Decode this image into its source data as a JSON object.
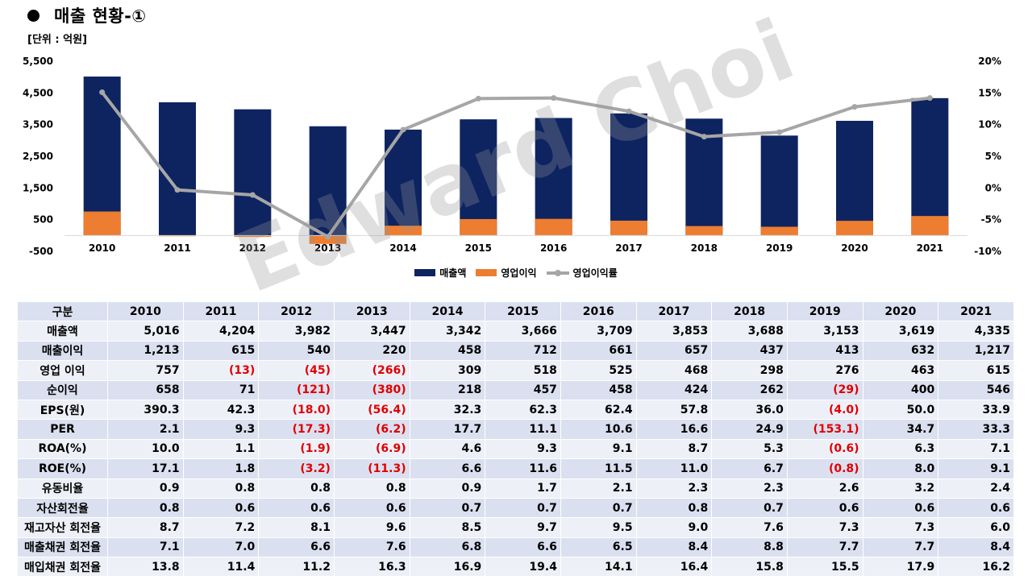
{
  "header": {
    "title": "매출 현황-①",
    "unit": "[단위 : 억원]"
  },
  "watermark": "Edward Choi",
  "chart_data": {
    "type": "bar",
    "stacked": "overlay",
    "categories": [
      "2010",
      "2011",
      "2012",
      "2013",
      "2014",
      "2015",
      "2016",
      "2017",
      "2018",
      "2019",
      "2020",
      "2021"
    ],
    "series": [
      {
        "name": "매출액",
        "kind": "bar",
        "axis": "left",
        "color": "#0e2460",
        "values": [
          5016,
          4204,
          3982,
          3447,
          3342,
          3666,
          3709,
          3853,
          3688,
          3153,
          3619,
          4335
        ]
      },
      {
        "name": "영업이익",
        "kind": "bar",
        "axis": "left",
        "color": "#ed7d31",
        "values": [
          757,
          -13,
          -45,
          -266,
          309,
          518,
          525,
          468,
          298,
          276,
          463,
          615
        ]
      },
      {
        "name": "영업이익률",
        "kind": "line",
        "axis": "right",
        "color": "#a6a6a6",
        "values": [
          15.1,
          -0.3,
          -1.1,
          -7.7,
          9.2,
          14.1,
          14.2,
          12.1,
          8.1,
          8.8,
          12.8,
          14.2
        ]
      }
    ],
    "yleft": {
      "min": -500,
      "max": 5500,
      "ticks": [
        -500,
        500,
        1500,
        2500,
        3500,
        4500,
        5500
      ],
      "tick_labels": [
        "-500",
        "500",
        "1,500",
        "2,500",
        "3,500",
        "4,500",
        "5,500"
      ]
    },
    "yright": {
      "min": -10,
      "max": 20,
      "ticks": [
        -10,
        -5,
        0,
        5,
        10,
        15,
        20
      ],
      "tick_labels": [
        "-10%",
        "-5%",
        "0%",
        "5%",
        "10%",
        "15%",
        "20%"
      ]
    },
    "legend": [
      "매출액",
      "영업이익",
      "영업이익률"
    ],
    "legend_position": "bottom"
  },
  "table": {
    "header": [
      "구분",
      "2010",
      "2011",
      "2012",
      "2013",
      "2014",
      "2015",
      "2016",
      "2017",
      "2018",
      "2019",
      "2020",
      "2021"
    ],
    "rows": [
      {
        "label": "매출액",
        "values": [
          "5,016",
          "4,204",
          "3,982",
          "3,447",
          "3,342",
          "3,666",
          "3,709",
          "3,853",
          "3,688",
          "3,153",
          "3,619",
          "4,335"
        ]
      },
      {
        "label": "매출이익",
        "values": [
          "1,213",
          "615",
          "540",
          "220",
          "458",
          "712",
          "661",
          "657",
          "437",
          "413",
          "632",
          "1,217"
        ]
      },
      {
        "label": "영업 이익",
        "values": [
          "757",
          "(13)",
          "(45)",
          "(266)",
          "309",
          "518",
          "525",
          "468",
          "298",
          "276",
          "463",
          "615"
        ]
      },
      {
        "label": "순이익",
        "values": [
          "658",
          "71",
          "(121)",
          "(380)",
          "218",
          "457",
          "458",
          "424",
          "262",
          "(29)",
          "400",
          "546"
        ]
      },
      {
        "label": "EPS(원)",
        "values": [
          "390.3",
          "42.3",
          "(18.0)",
          "(56.4)",
          "32.3",
          "62.3",
          "62.4",
          "57.8",
          "36.0",
          "(4.0)",
          "50.0",
          "33.9"
        ]
      },
      {
        "label": "PER",
        "values": [
          "2.1",
          "9.3",
          "(17.3)",
          "(6.2)",
          "17.7",
          "11.1",
          "10.6",
          "16.6",
          "24.9",
          "(153.1)",
          "34.7",
          "33.3"
        ]
      },
      {
        "label": "ROA(%)",
        "values": [
          "10.0",
          "1.1",
          "(1.9)",
          "(6.9)",
          "4.6",
          "9.3",
          "9.1",
          "8.7",
          "5.3",
          "(0.6)",
          "6.3",
          "7.1"
        ]
      },
      {
        "label": "ROE(%)",
        "values": [
          "17.1",
          "1.8",
          "(3.2)",
          "(11.3)",
          "6.6",
          "11.6",
          "11.5",
          "11.0",
          "6.7",
          "(0.8)",
          "8.0",
          "9.1"
        ]
      },
      {
        "label": "유동비율",
        "values": [
          "0.9",
          "0.8",
          "0.8",
          "0.8",
          "0.9",
          "1.7",
          "2.1",
          "2.3",
          "2.3",
          "2.6",
          "3.2",
          "2.4"
        ]
      },
      {
        "label": "자산회전율",
        "values": [
          "0.8",
          "0.6",
          "0.6",
          "0.6",
          "0.7",
          "0.7",
          "0.7",
          "0.8",
          "0.7",
          "0.6",
          "0.6",
          "0.6"
        ]
      },
      {
        "label": "재고자산 회전율",
        "values": [
          "8.7",
          "7.2",
          "8.1",
          "9.6",
          "8.5",
          "9.7",
          "9.5",
          "9.0",
          "7.6",
          "7.3",
          "7.3",
          "6.0"
        ]
      },
      {
        "label": "매출채권 회전율",
        "values": [
          "7.1",
          "7.0",
          "6.6",
          "7.6",
          "6.8",
          "6.6",
          "6.5",
          "8.4",
          "8.8",
          "7.7",
          "7.7",
          "8.4"
        ]
      },
      {
        "label": "매입채권 회전율",
        "values": [
          "13.8",
          "11.4",
          "11.2",
          "16.3",
          "16.9",
          "19.4",
          "14.1",
          "16.4",
          "15.8",
          "15.5",
          "17.9",
          "16.2"
        ]
      }
    ]
  }
}
